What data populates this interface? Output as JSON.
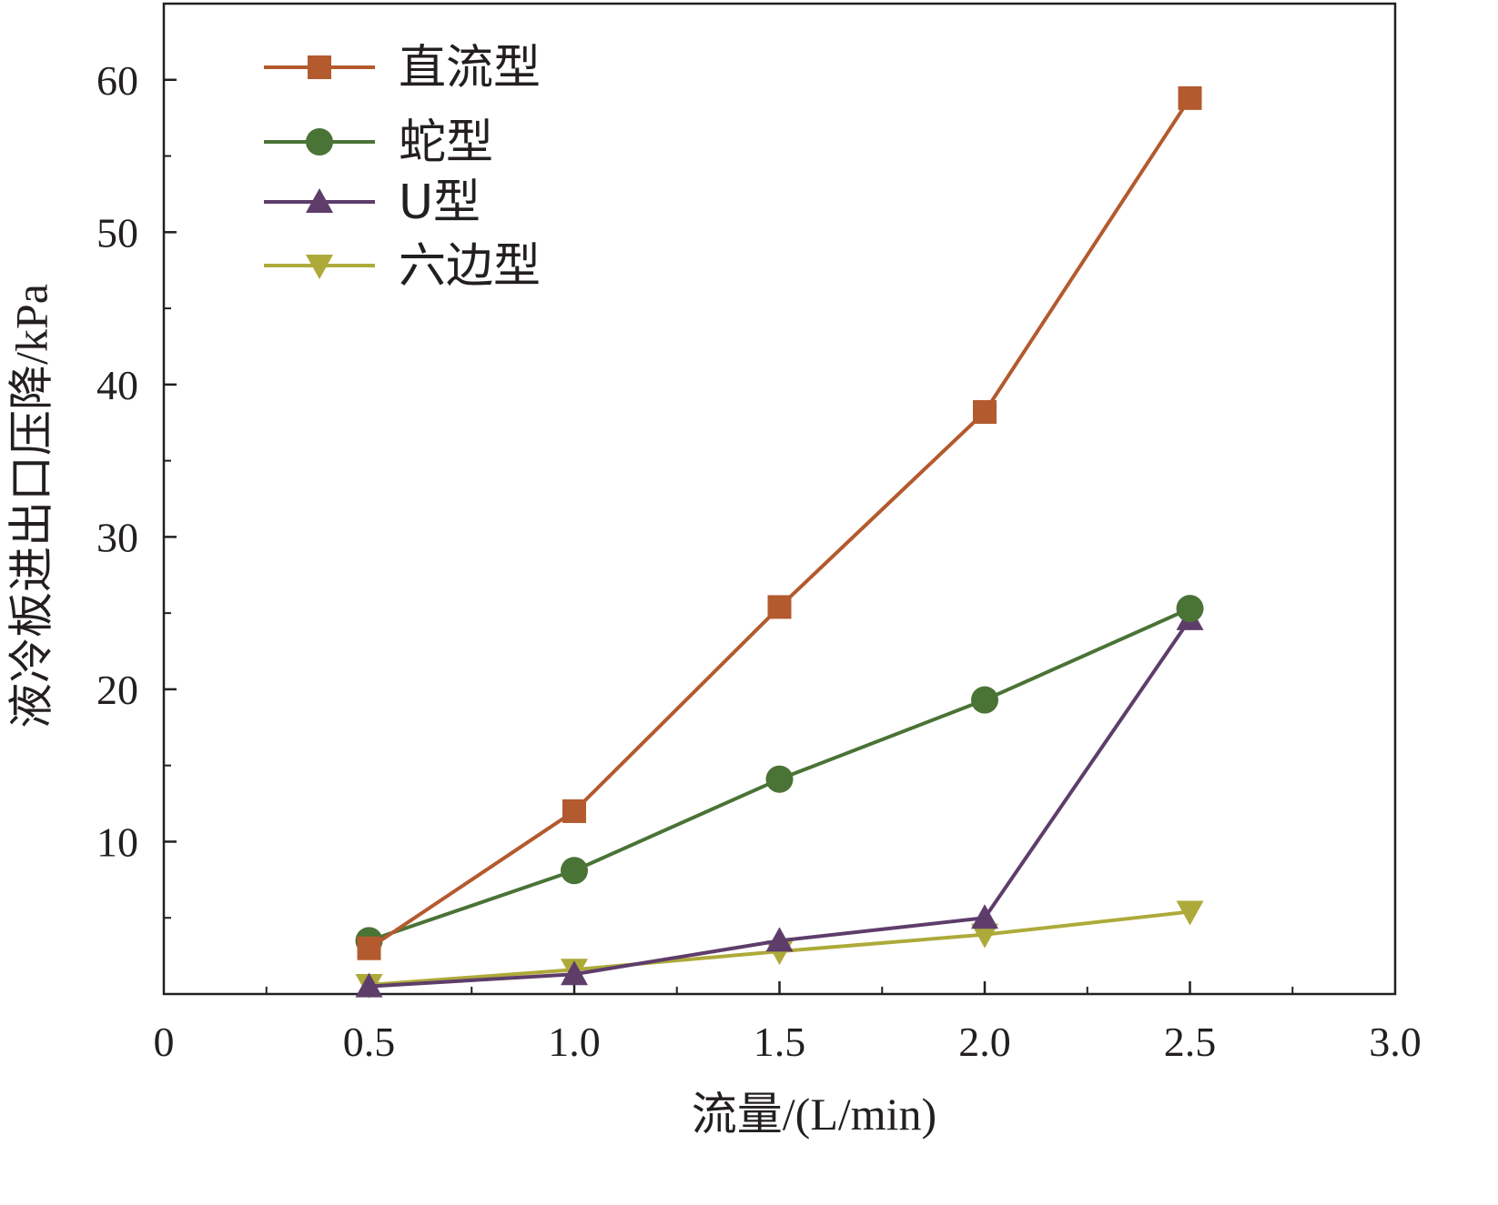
{
  "chart_data": {
    "type": "line",
    "title": "",
    "xlabel": "流量/(L/min)",
    "ylabel": "液冷板进出口压降/kPa",
    "xlim": [
      0,
      3.0
    ],
    "ylim": [
      0,
      65
    ],
    "x_ticks": [
      0,
      0.5,
      1.0,
      1.5,
      2.0,
      2.5,
      3.0
    ],
    "x_tick_labels": [
      "0",
      "0.5",
      "1.0",
      "1.5",
      "2.0",
      "2.5",
      "3.0"
    ],
    "y_ticks": [
      10,
      20,
      30,
      40,
      50,
      60
    ],
    "y_tick_labels": [
      "10",
      "20",
      "30",
      "40",
      "50",
      "60"
    ],
    "x": [
      0.5,
      1.0,
      1.5,
      2.0,
      2.5
    ],
    "legend_position": "top-left",
    "grid": false,
    "series": [
      {
        "name": "直流型",
        "values": [
          3.0,
          12.0,
          25.4,
          38.2,
          58.8
        ],
        "color": "#b35a2e",
        "marker": "square"
      },
      {
        "name": "蛇型",
        "values": [
          3.5,
          8.1,
          14.1,
          19.3,
          25.3
        ],
        "color": "#4a7336",
        "marker": "circle"
      },
      {
        "name": "U型",
        "values": [
          0.5,
          1.3,
          3.5,
          5.0,
          24.6
        ],
        "color": "#5e3d6b",
        "marker": "triangle-up"
      },
      {
        "name": "六边型",
        "values": [
          0.6,
          1.6,
          2.8,
          3.9,
          5.4
        ],
        "color": "#aeaa3a",
        "marker": "triangle-down"
      }
    ]
  }
}
